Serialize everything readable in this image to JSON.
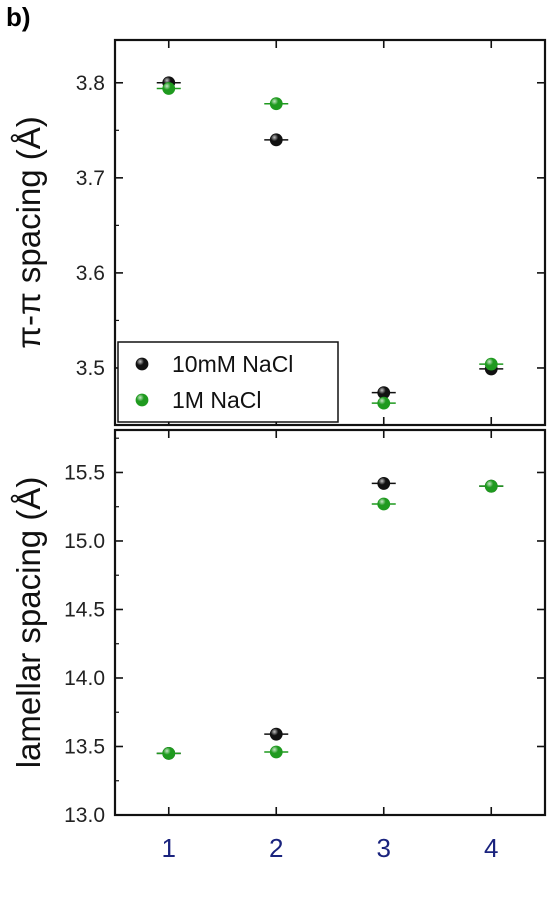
{
  "panel_label": "b)",
  "colors": {
    "series_10mM": "#111111",
    "series_1M": "#1f9a1f",
    "frame": "#111111",
    "x_tick_text": "#1a237e"
  },
  "chart_data": [
    {
      "type": "scatter",
      "ylabel": "π-π spacing (Å)",
      "xlabel": "",
      "xlim": [
        0.5,
        4.5
      ],
      "ylim": [
        3.44,
        3.845
      ],
      "yticks": [
        3.5,
        3.6,
        3.7,
        3.8
      ],
      "ytick_labels": [
        "3.5",
        "3.6",
        "3.7",
        "3.8"
      ],
      "x": [
        1,
        2,
        3,
        4
      ],
      "legend": {
        "placement": "bottom-left",
        "entries": [
          "10mM NaCl",
          "1M NaCl"
        ]
      },
      "series": [
        {
          "name": "10mM NaCl",
          "values": [
            3.8,
            3.74,
            3.474,
            3.499
          ]
        },
        {
          "name": "1M NaCl",
          "values": [
            3.794,
            3.778,
            3.463,
            3.504
          ]
        }
      ]
    },
    {
      "type": "scatter",
      "ylabel": "lamellar spacing (Å)",
      "xlabel": "",
      "xlim": [
        0.5,
        4.5
      ],
      "ylim": [
        13.0,
        15.81
      ],
      "yticks": [
        13.0,
        13.5,
        14.0,
        14.5,
        15.0,
        15.5
      ],
      "ytick_labels": [
        "13.0",
        "13.5",
        "14.0",
        "14.5",
        "15.0",
        "15.5"
      ],
      "x": [
        1,
        2,
        3,
        4
      ],
      "xtick_labels": [
        "1",
        "2",
        "3",
        "4"
      ],
      "series": [
        {
          "name": "10mM NaCl",
          "values": [
            13.45,
            13.59,
            15.42,
            15.4
          ]
        },
        {
          "name": "1M NaCl",
          "values": [
            13.45,
            13.46,
            15.27,
            15.4
          ]
        }
      ]
    }
  ]
}
